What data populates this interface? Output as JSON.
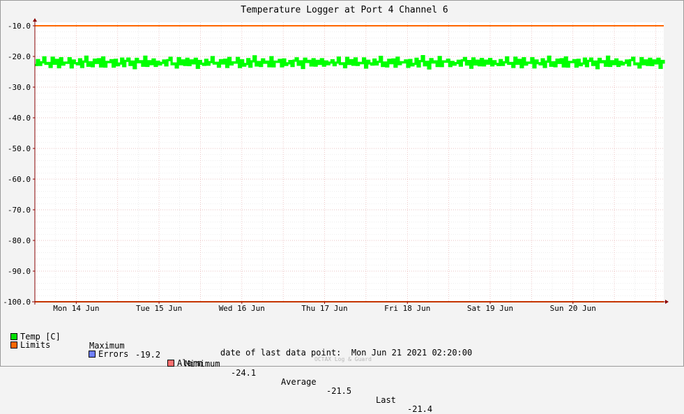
{
  "chart_data": {
    "type": "line",
    "title": "Temperature Logger at Port 4 Channel 6",
    "y_tick_labels": [
      "-10.0",
      "-20.0",
      "-30.0",
      "-40.0",
      "-50.0",
      "-60.0",
      "-70.0",
      "-80.0",
      "-90.0",
      "-100.0"
    ],
    "ylim": [
      -100,
      -10
    ],
    "x_tick_labels": [
      "Mon 14 Jun",
      "Tue 15 Jun",
      "Wed 16 Jun",
      "Thu 17 Jun",
      "Fri 18 Jun",
      "Sat 19 Jun",
      "Sun 20 Jun"
    ],
    "xlim": [
      "2021-06-13 12:00",
      "2021-06-21 02:20"
    ],
    "grid": true,
    "series": [
      {
        "name": "Temp [C]",
        "color": "#00ff00",
        "style": "filled band (min–max per interval)",
        "y_range_approx": [
          -24.1,
          -19.2
        ],
        "typical_values": [
          -22.4,
          -21.1,
          -23.0,
          -21.6,
          -20.3,
          -22.7,
          -21.9,
          -23.5,
          -20.8,
          -22.2,
          -21.3,
          -23.1,
          -20.5,
          -22.9,
          -21.7,
          -22.1,
          -20.9,
          -23.3,
          -21.4,
          -22.6
        ]
      },
      {
        "name": "Limits",
        "color": "#ff6600",
        "values": [
          -10,
          -100
        ]
      }
    ],
    "legend": [
      {
        "label": "Temp [C]",
        "color": "#00e000"
      },
      {
        "label": "Limits",
        "color": "#ff6600"
      },
      {
        "label": "Errors",
        "color": "#6f7fff"
      },
      {
        "label": "Alarm",
        "color": "#ff7070"
      }
    ],
    "stats": {
      "maximum_label": "Maximum",
      "maximum": "-19.2",
      "minimum_label": "Minimum",
      "minimum": "-24.1",
      "average_label": "Average",
      "average": "-21.5",
      "last_label": "Last",
      "last": "-21.4"
    },
    "last_data_point_label": "date of last data point:",
    "last_data_point": "Mon Jun 21 2021 02:20:00",
    "watermark": "OCTAX Log & Guard"
  }
}
